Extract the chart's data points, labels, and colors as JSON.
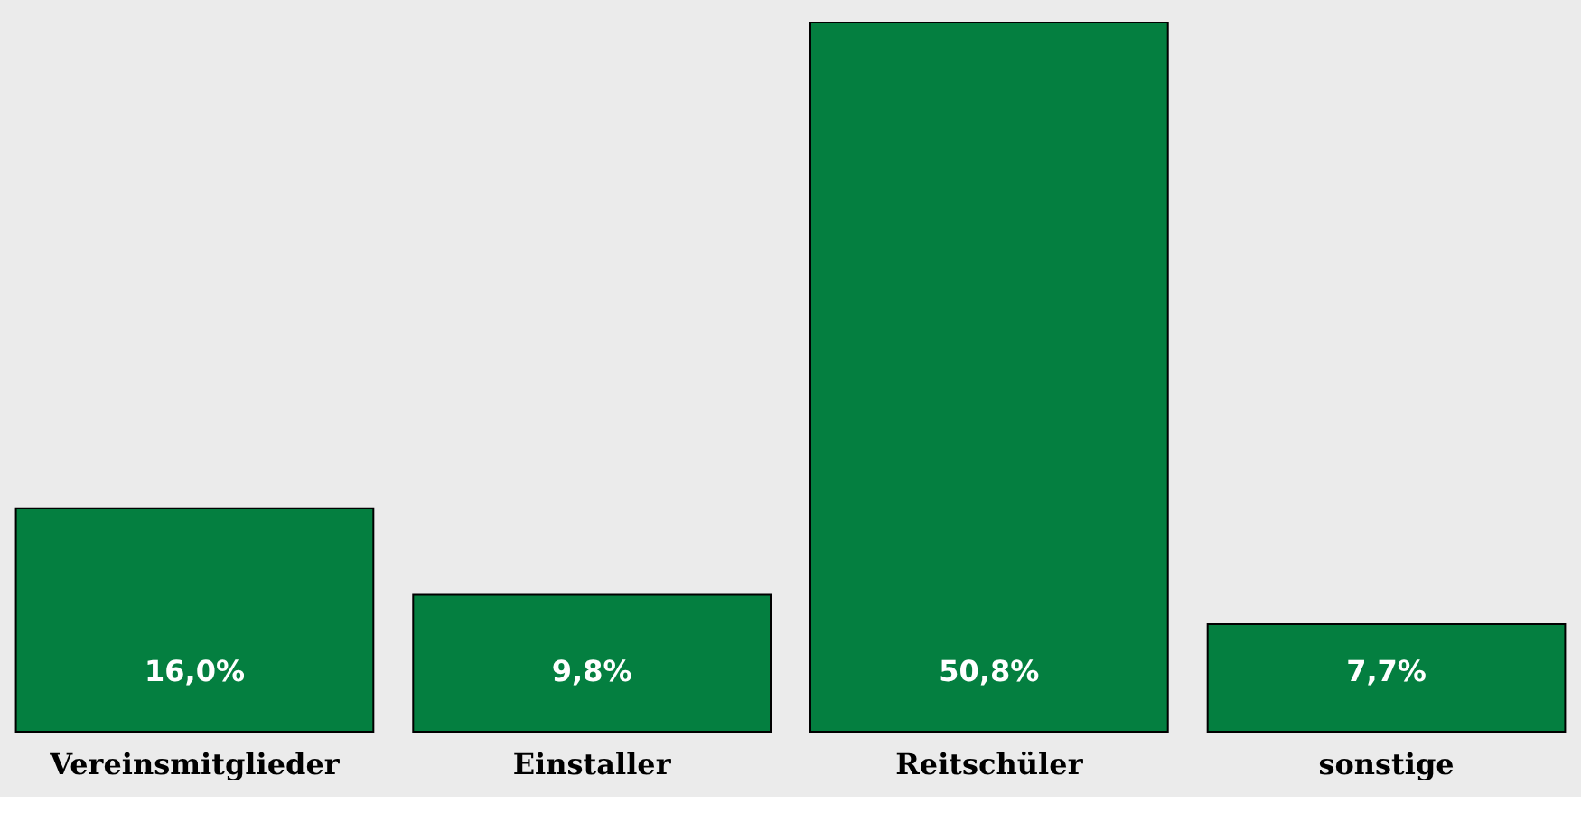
{
  "chart_data": {
    "type": "bar",
    "categories": [
      "Vereinsmitglieder",
      "Einstaller",
      "Reitschüler",
      "sonstige"
    ],
    "values": [
      16.0,
      9.8,
      50.8,
      7.7
    ],
    "value_labels": [
      "16,0%",
      "9,8%",
      "50,8%",
      "7,7%"
    ],
    "color": "#047f40"
  }
}
